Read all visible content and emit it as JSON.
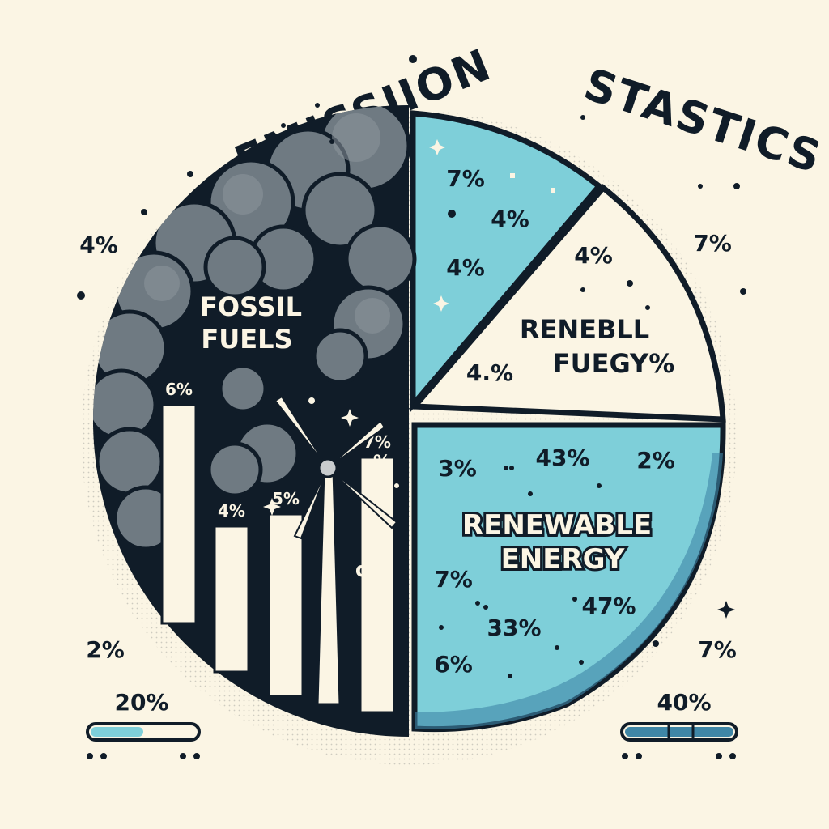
{
  "colors": {
    "background": "#fbf5e4",
    "ink": "#101c28",
    "teal": "#7ecfd9",
    "teal_dark": "#3f86a6",
    "smoke": "#6f7a82",
    "cream": "#fbf5e4"
  },
  "chart_data": {
    "type": "pie",
    "title_words": [
      "EMISSIION",
      "STASTICS"
    ],
    "slices": [
      {
        "name": "FOSSIL FUELS",
        "label_lines": [
          "FOSSIL",
          "FUELS"
        ],
        "value": 50,
        "color": "#101c28"
      },
      {
        "name": "",
        "value": 13,
        "color": "#7ecfd9"
      },
      {
        "name": "RENEBLL FUEGY%",
        "label_lines": [
          "RENEBLL",
          "FUEGY%"
        ],
        "value": 12,
        "color": "#fbf5e4"
      },
      {
        "name": "RENEWABLE ENERGY",
        "label_lines": [
          "RENEWABLE",
          "ENERGY"
        ],
        "value": 25,
        "color": "#7ecfd9"
      }
    ],
    "inner_bars": {
      "labels": [
        "6%",
        "4%",
        "5%",
        "7%"
      ],
      "values": [
        6,
        4,
        5,
        7
      ]
    },
    "slice_labels": {
      "top_teal": [
        "7%",
        "4%",
        "4%"
      ],
      "cream": [
        "4%",
        "4.%"
      ],
      "bottom_teal": [
        "3%",
        "43%",
        "2%",
        "7%",
        "47%",
        "33%",
        "6%"
      ],
      "dark": [
        "%",
        "σ%"
      ]
    },
    "outer_labels": [
      "4%",
      "7%",
      "2%",
      "7%"
    ],
    "progress": [
      {
        "label": "20%",
        "value": 20
      },
      {
        "label": "40%",
        "value": 40
      }
    ]
  }
}
